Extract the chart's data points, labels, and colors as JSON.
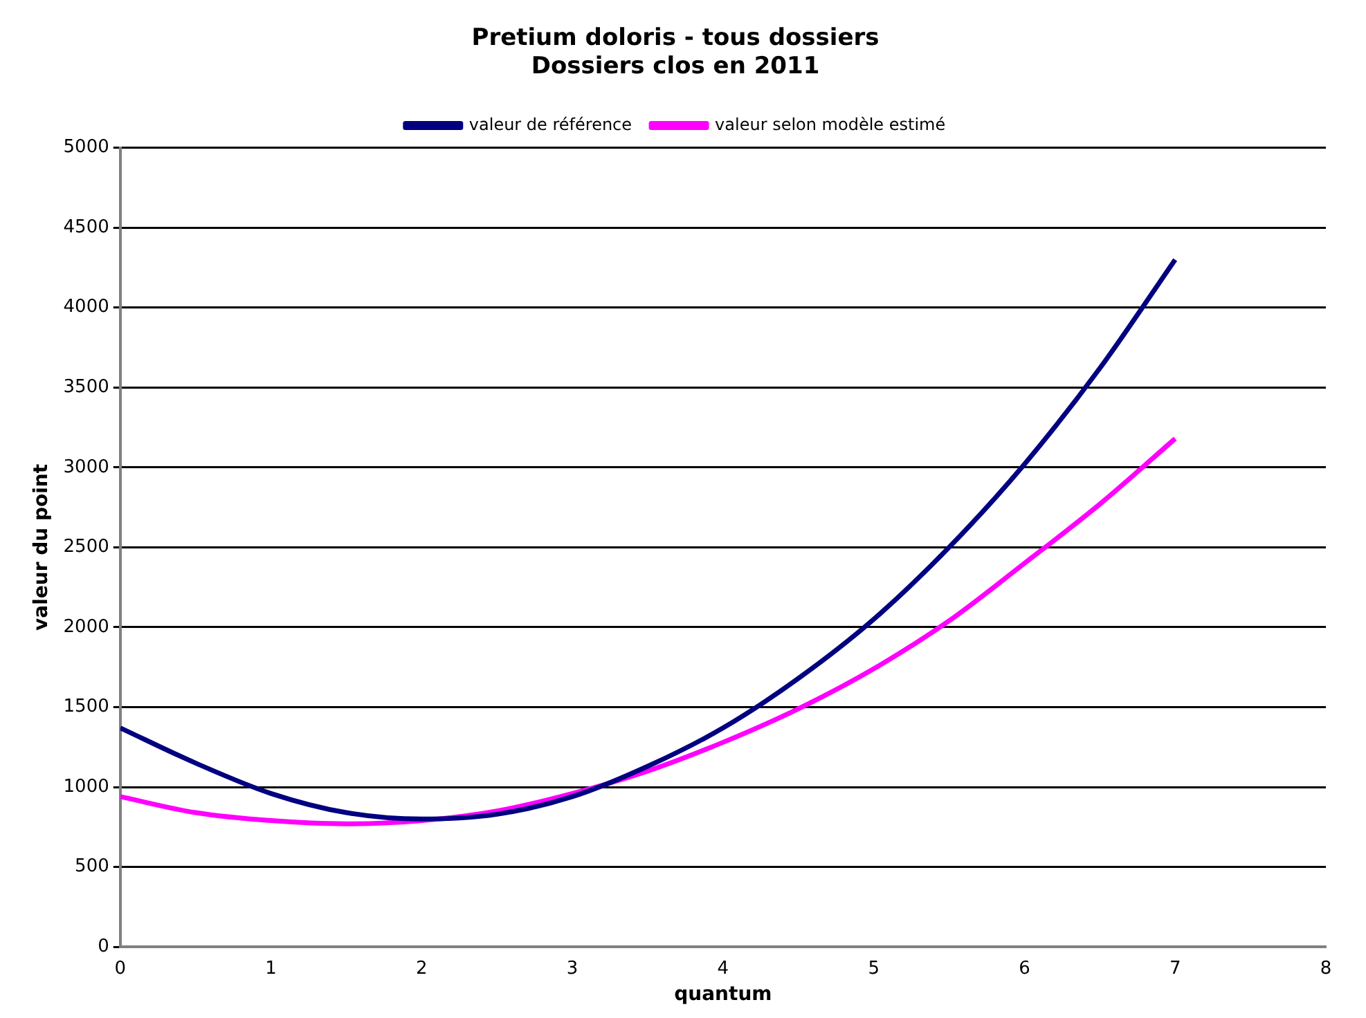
{
  "chart_data": {
    "type": "line",
    "title": [
      "Pretium doloris - tous dossiers",
      "Dossiers clos en 2011"
    ],
    "xlabel": "quantum",
    "ylabel": "valeur du point",
    "x": [
      0,
      0.5,
      1,
      1.5,
      2,
      2.5,
      3,
      3.5,
      4,
      4.5,
      5,
      5.5,
      6,
      6.5,
      7
    ],
    "series": [
      {
        "name": "valeur de référence",
        "color": "#000080",
        "values": [
          1370,
          1150,
          960,
          840,
          800,
          830,
          940,
          1130,
          1370,
          1680,
          2050,
          2500,
          3020,
          3620,
          4300
        ]
      },
      {
        "name": "valeur selon modèle estimé",
        "color": "#ff00ff",
        "values": [
          940,
          840,
          790,
          770,
          790,
          850,
          960,
          1100,
          1280,
          1490,
          1740,
          2040,
          2400,
          2770,
          3180
        ]
      }
    ],
    "xlim": [
      0,
      8
    ],
    "xticks": [
      0,
      1,
      2,
      3,
      4,
      5,
      6,
      7,
      8
    ],
    "ylim": [
      0,
      5000
    ],
    "yticks": [
      0,
      500,
      1000,
      1500,
      2000,
      2500,
      3000,
      3500,
      4000,
      4500,
      5000
    ],
    "grid": "y",
    "legend": "top",
    "marker": "none",
    "line_style": "solid"
  }
}
